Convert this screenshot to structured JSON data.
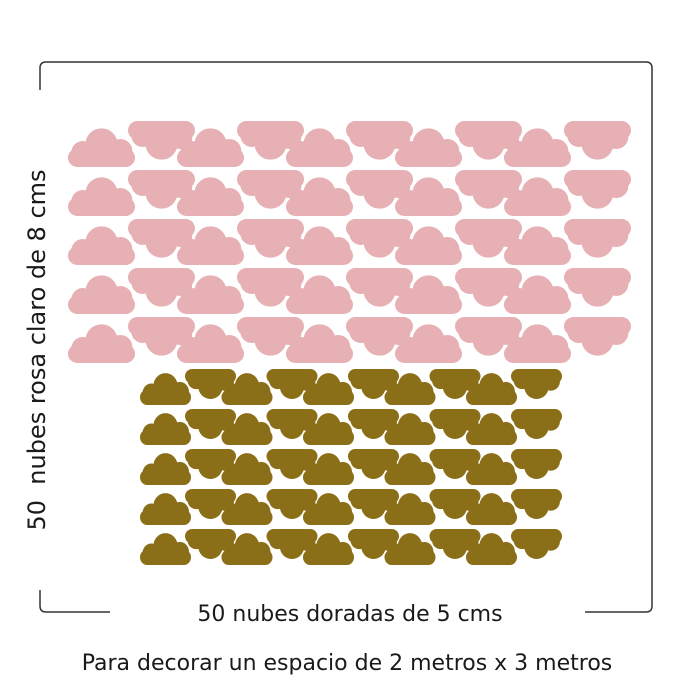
{
  "side_label": "50  nubes rosa claro de 8 cms",
  "bottom_label": "50 nubes doradas de 5 cms",
  "footer": "Para decorar un espacio de 2 metros x 3 metros"
}
